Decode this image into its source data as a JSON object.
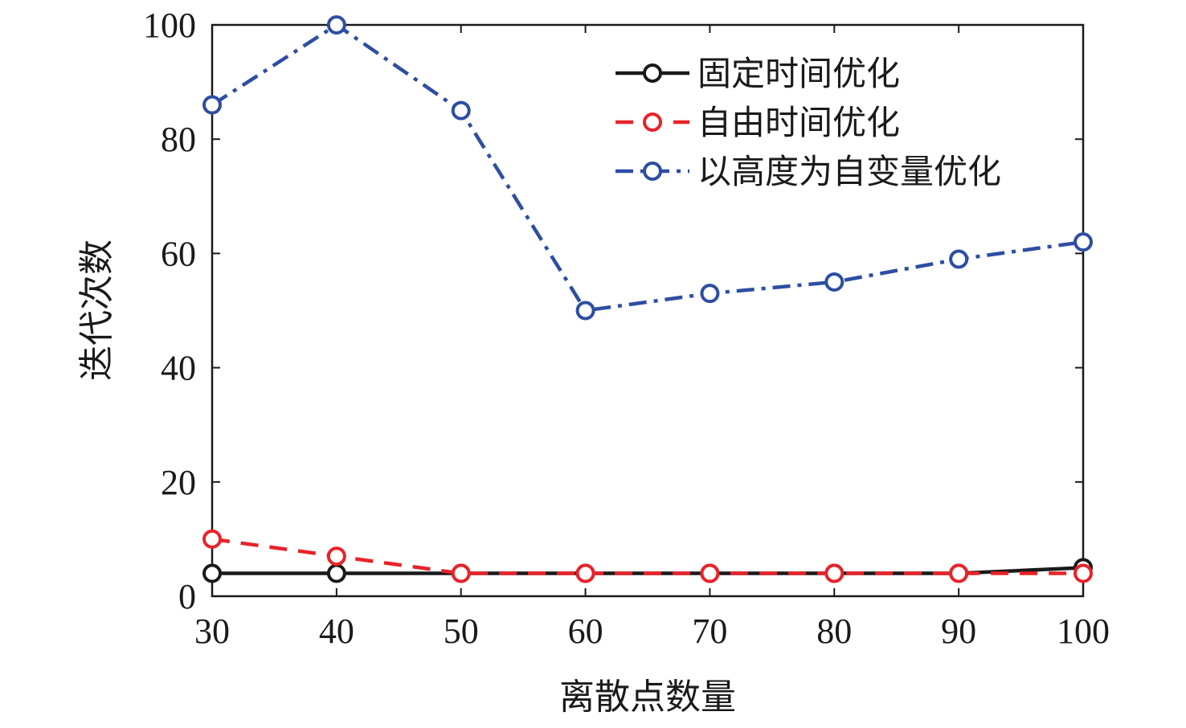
{
  "chart_data": {
    "type": "line",
    "xlabel": "离散点数量",
    "ylabel": "迭代次数",
    "xlim": [
      30,
      100
    ],
    "ylim": [
      0,
      100
    ],
    "xticks": [
      30,
      40,
      50,
      60,
      70,
      80,
      90,
      100
    ],
    "yticks": [
      0,
      20,
      40,
      60,
      80,
      100
    ],
    "grid": false,
    "legend_position": "top-right",
    "x": [
      30,
      40,
      50,
      60,
      70,
      80,
      90,
      100
    ],
    "series": [
      {
        "name": "固定时间优化",
        "values": [
          4,
          4,
          4,
          4,
          4,
          4,
          4,
          5
        ],
        "color": "#1a1a1a",
        "line_style": "solid",
        "marker": "circle"
      },
      {
        "name": "自由时间优化",
        "values": [
          10,
          7,
          4,
          4,
          4,
          4,
          4,
          4
        ],
        "color": "#e8232a",
        "line_style": "dashed",
        "marker": "circle"
      },
      {
        "name": "以高度为自变量优化",
        "values": [
          86,
          100,
          85,
          50,
          53,
          55,
          59,
          62
        ],
        "color": "#2d4ea2",
        "line_style": "dashdot",
        "marker": "circle"
      }
    ]
  }
}
